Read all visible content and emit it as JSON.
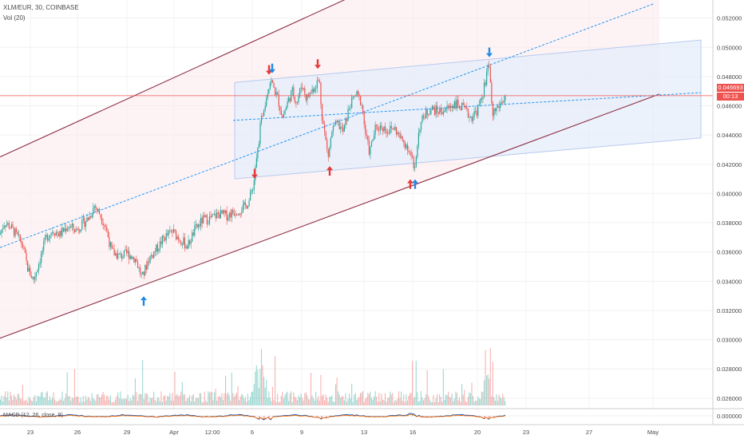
{
  "header": {
    "symbol_line": "XLM/EUR, 30, COINBASE",
    "volume_line": "Vol (20)",
    "macd_line": "MACD (12, 26, close, 9)"
  },
  "price_tags": {
    "last_price": "0.046693",
    "countdown": "00:13"
  },
  "colors": {
    "up": "#26a69a",
    "down": "#ef5350",
    "channel": "#8d2f45",
    "dashed": "#2196f3",
    "box_fill": "#e3ecfb",
    "arrow_red": "#e53935",
    "arrow_blue": "#1e88e5",
    "price_line": "#ef5350"
  },
  "chart_data": {
    "type": "candlestick",
    "title": "XLM/EUR, 30, COINBASE",
    "ylim": [
      0.0255,
      0.0528
    ],
    "y_ticks": [
      "0.052000",
      "0.050000",
      "0.048000",
      "0.046000",
      "0.044000",
      "0.042000",
      "0.040000",
      "0.038000",
      "0.036000",
      "0.034000",
      "0.032000",
      "0.030000",
      "0.028000",
      "0.026000"
    ],
    "y_tick_values": [
      0.052,
      0.05,
      0.048,
      0.046,
      0.044,
      0.042,
      0.04,
      0.038,
      0.036,
      0.034,
      0.032,
      0.03,
      0.028,
      0.026
    ],
    "x_ticks": [
      "23",
      "26",
      "29",
      "Apr",
      "12:00",
      "6",
      "9",
      "13",
      "16",
      "20",
      "23",
      "27",
      "May"
    ],
    "price_path": [
      {
        "x": 0,
        "y": 0.0372
      },
      {
        "x": 5,
        "y": 0.038
      },
      {
        "x": 12,
        "y": 0.0378
      },
      {
        "x": 20,
        "y": 0.0372
      },
      {
        "x": 28,
        "y": 0.0365
      },
      {
        "x": 35,
        "y": 0.0348
      },
      {
        "x": 42,
        "y": 0.0341
      },
      {
        "x": 50,
        "y": 0.0355
      },
      {
        "x": 58,
        "y": 0.037
      },
      {
        "x": 66,
        "y": 0.0375
      },
      {
        "x": 75,
        "y": 0.0372
      },
      {
        "x": 85,
        "y": 0.0378
      },
      {
        "x": 95,
        "y": 0.0375
      },
      {
        "x": 105,
        "y": 0.038
      },
      {
        "x": 112,
        "y": 0.0384
      },
      {
        "x": 118,
        "y": 0.0392
      },
      {
        "x": 124,
        "y": 0.0387
      },
      {
        "x": 132,
        "y": 0.0378
      },
      {
        "x": 140,
        "y": 0.036
      },
      {
        "x": 150,
        "y": 0.0357
      },
      {
        "x": 160,
        "y": 0.0359
      },
      {
        "x": 170,
        "y": 0.0355
      },
      {
        "x": 178,
        "y": 0.0342
      },
      {
        "x": 186,
        "y": 0.0355
      },
      {
        "x": 196,
        "y": 0.0362
      },
      {
        "x": 206,
        "y": 0.037
      },
      {
        "x": 216,
        "y": 0.0374
      },
      {
        "x": 225,
        "y": 0.0369
      },
      {
        "x": 235,
        "y": 0.0364
      },
      {
        "x": 244,
        "y": 0.0375
      },
      {
        "x": 254,
        "y": 0.0382
      },
      {
        "x": 264,
        "y": 0.0383
      },
      {
        "x": 274,
        "y": 0.0386
      },
      {
        "x": 284,
        "y": 0.0385
      },
      {
        "x": 295,
        "y": 0.0388
      },
      {
        "x": 305,
        "y": 0.039
      },
      {
        "x": 312,
        "y": 0.0395
      },
      {
        "x": 318,
        "y": 0.0408
      },
      {
        "x": 322,
        "y": 0.0425
      },
      {
        "x": 326,
        "y": 0.0445
      },
      {
        "x": 330,
        "y": 0.0458
      },
      {
        "x": 335,
        "y": 0.047
      },
      {
        "x": 339,
        "y": 0.0478
      },
      {
        "x": 343,
        "y": 0.0472
      },
      {
        "x": 348,
        "y": 0.0465
      },
      {
        "x": 354,
        "y": 0.0452
      },
      {
        "x": 360,
        "y": 0.0462
      },
      {
        "x": 366,
        "y": 0.047
      },
      {
        "x": 372,
        "y": 0.0462
      },
      {
        "x": 378,
        "y": 0.0475
      },
      {
        "x": 384,
        "y": 0.0465
      },
      {
        "x": 390,
        "y": 0.047
      },
      {
        "x": 396,
        "y": 0.0475
      },
      {
        "x": 400,
        "y": 0.0478
      },
      {
        "x": 403,
        "y": 0.0455
      },
      {
        "x": 407,
        "y": 0.044
      },
      {
        "x": 411,
        "y": 0.0425
      },
      {
        "x": 416,
        "y": 0.0443
      },
      {
        "x": 423,
        "y": 0.0448
      },
      {
        "x": 430,
        "y": 0.0442
      },
      {
        "x": 438,
        "y": 0.046
      },
      {
        "x": 446,
        "y": 0.0468
      },
      {
        "x": 453,
        "y": 0.0462
      },
      {
        "x": 458,
        "y": 0.044
      },
      {
        "x": 463,
        "y": 0.0428
      },
      {
        "x": 470,
        "y": 0.0444
      },
      {
        "x": 478,
        "y": 0.0446
      },
      {
        "x": 486,
        "y": 0.0443
      },
      {
        "x": 494,
        "y": 0.0445
      },
      {
        "x": 502,
        "y": 0.0437
      },
      {
        "x": 510,
        "y": 0.0433
      },
      {
        "x": 516,
        "y": 0.0424
      },
      {
        "x": 520,
        "y": 0.0418
      },
      {
        "x": 525,
        "y": 0.0445
      },
      {
        "x": 532,
        "y": 0.0454
      },
      {
        "x": 540,
        "y": 0.0458
      },
      {
        "x": 550,
        "y": 0.0456
      },
      {
        "x": 560,
        "y": 0.0458
      },
      {
        "x": 570,
        "y": 0.0462
      },
      {
        "x": 580,
        "y": 0.0458
      },
      {
        "x": 590,
        "y": 0.0452
      },
      {
        "x": 598,
        "y": 0.0457
      },
      {
        "x": 604,
        "y": 0.0465
      },
      {
        "x": 609,
        "y": 0.048
      },
      {
        "x": 613,
        "y": 0.0488
      },
      {
        "x": 617,
        "y": 0.0455
      },
      {
        "x": 622,
        "y": 0.0458
      },
      {
        "x": 628,
        "y": 0.0462
      },
      {
        "x": 634,
        "y": 0.0467
      }
    ],
    "channel_lines": [
      {
        "name": "upper",
        "from": {
          "x": 0,
          "y": 0.0425
        },
        "to": {
          "x": 550,
          "y": 0.0562
        }
      },
      {
        "name": "lower",
        "from": {
          "x": 0,
          "y": 0.0301
        },
        "to": {
          "x": 826,
          "y": 0.0468
        }
      }
    ],
    "dashed_lines": [
      {
        "from": {
          "x": 0,
          "y": 0.0363
        },
        "to": {
          "x": 820,
          "y": 0.053
        }
      },
      {
        "from": {
          "x": 292,
          "y": 0.045
        },
        "to": {
          "x": 878,
          "y": 0.0469
        }
      }
    ],
    "range_box": {
      "top_left": {
        "x": 294,
        "y": 0.0476
      },
      "top_right": {
        "x": 878,
        "y": 0.0505
      },
      "bottom_right": {
        "x": 878,
        "y": 0.0438
      },
      "bottom_left": {
        "x": 294,
        "y": 0.041
      }
    },
    "arrows": [
      {
        "x": 180,
        "y": 0.0327,
        "dir": "up",
        "color": "blue"
      },
      {
        "x": 337,
        "y": 0.0484,
        "dir": "down",
        "color": "red"
      },
      {
        "x": 341,
        "y": 0.0485,
        "dir": "down",
        "color": "blue"
      },
      {
        "x": 398,
        "y": 0.0488,
        "dir": "down",
        "color": "red"
      },
      {
        "x": 319,
        "y": 0.0413,
        "dir": "down",
        "color": "red"
      },
      {
        "x": 413,
        "y": 0.0416,
        "dir": "up",
        "color": "red"
      },
      {
        "x": 514,
        "y": 0.0407,
        "dir": "up",
        "color": "red"
      },
      {
        "x": 520,
        "y": 0.0407,
        "dir": "up",
        "color": "blue"
      },
      {
        "x": 613,
        "y": 0.0496,
        "dir": "down",
        "color": "blue"
      }
    ],
    "last_price": 0.046693
  }
}
